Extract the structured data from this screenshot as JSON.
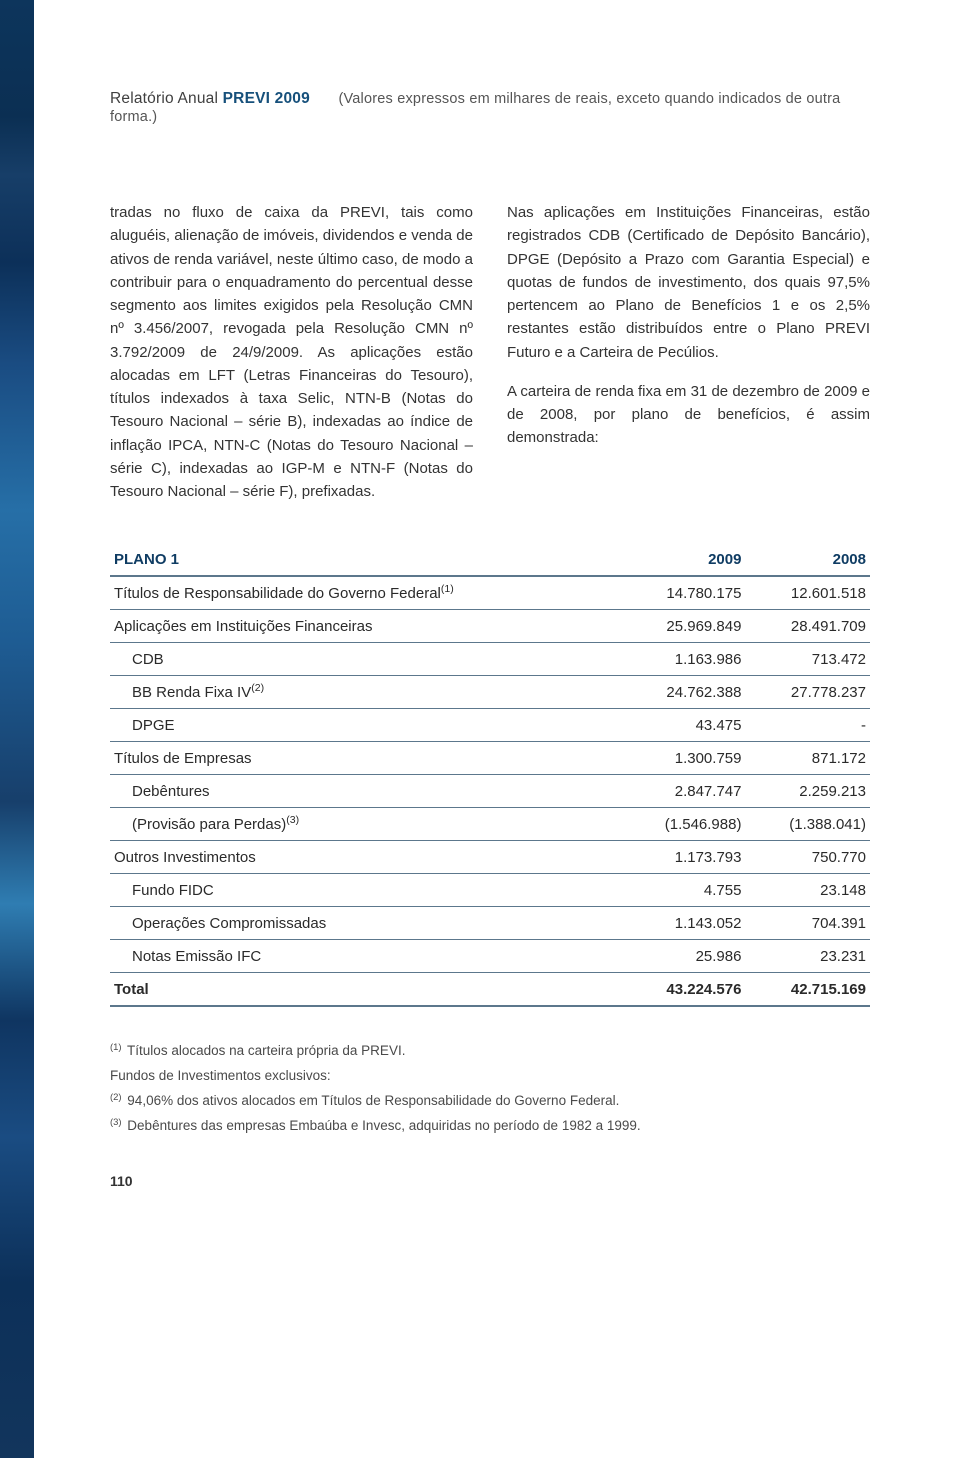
{
  "header": {
    "prefix": "Relatório Anual ",
    "brand": "PREVI 2009",
    "note": "(Valores expressos em milhares de reais, exceto quando indicados de outra forma.)"
  },
  "body": {
    "p1": "tradas no fluxo de caixa da PREVI, tais como aluguéis, alienação de imóveis, dividendos e venda de ativos de renda variável, neste último caso, de modo a contribuir para o enquadramento do percentual desse segmento aos limites exigidos pela Resolução CMN nº 3.456/2007, revogada pela Resolução CMN nº 3.792/2009 de 24/9/2009. As aplicações estão alocadas em LFT (Letras Financeiras do Tesouro), títulos indexados à taxa Selic, NTN-B (Notas do Tesouro Nacional – série B), indexadas ao índice de inflação IPCA, NTN-C (Notas do Tesouro Nacional – série C), indexadas ao IGP-M e NTN-F (Notas do Tesouro Nacional – série F), prefixadas.",
    "p2": "Nas aplicações em Instituições Financeiras, estão registrados CDB (Certificado de Depósito Bancário), DPGE (Depósito a Prazo com Garantia Especial) e quotas de fundos de investimento, dos quais 97,5% pertencem ao Plano de Benefícios 1 e os 2,5% restantes estão distribuídos entre o Plano PREVI Futuro e a Carteira de Pecúlios.",
    "p3": "A carteira de renda fixa em 31 de dezembro de 2009 e de 2008, por plano de benefícios, é assim demonstrada:"
  },
  "table": {
    "columns": [
      "PLANO 1",
      "2009",
      "2008"
    ],
    "rows": [
      {
        "label": "Títulos de Responsabilidade do Governo Federal",
        "sup": "(1)",
        "indent": 0,
        "bold": false,
        "v1": "14.780.175",
        "v2": "12.601.518"
      },
      {
        "label": "Aplicações em Instituições Financeiras",
        "sup": "",
        "indent": 0,
        "bold": false,
        "v1": "25.969.849",
        "v2": "28.491.709"
      },
      {
        "label": "CDB",
        "sup": "",
        "indent": 1,
        "bold": false,
        "v1": "1.163.986",
        "v2": "713.472"
      },
      {
        "label": "BB Renda Fixa IV",
        "sup": "(2)",
        "indent": 1,
        "bold": false,
        "v1": "24.762.388",
        "v2": "27.778.237"
      },
      {
        "label": "DPGE",
        "sup": "",
        "indent": 1,
        "bold": false,
        "v1": "43.475",
        "v2": "-"
      },
      {
        "label": "Títulos de Empresas",
        "sup": "",
        "indent": 0,
        "bold": false,
        "v1": "1.300.759",
        "v2": "871.172"
      },
      {
        "label": "Debêntures",
        "sup": "",
        "indent": 1,
        "bold": false,
        "v1": "2.847.747",
        "v2": "2.259.213"
      },
      {
        "label": "(Provisão para Perdas)",
        "sup": "(3)",
        "indent": 1,
        "bold": false,
        "v1": "(1.546.988)",
        "v2": "(1.388.041)"
      },
      {
        "label": "Outros Investimentos",
        "sup": "",
        "indent": 0,
        "bold": false,
        "v1": "1.173.793",
        "v2": "750.770"
      },
      {
        "label": "Fundo FIDC",
        "sup": "",
        "indent": 1,
        "bold": false,
        "v1": "4.755",
        "v2": "23.148"
      },
      {
        "label": "Operações Compromissadas",
        "sup": "",
        "indent": 1,
        "bold": false,
        "v1": "1.143.052",
        "v2": "704.391"
      },
      {
        "label": "Notas Emissão IFC",
        "sup": "",
        "indent": 1,
        "bold": false,
        "v1": "25.986",
        "v2": "23.231"
      },
      {
        "label": "Total",
        "sup": "",
        "indent": 0,
        "bold": true,
        "v1": "43.224.576",
        "v2": "42.715.169"
      }
    ]
  },
  "footnotes": {
    "n1_sup": "(1)",
    "n1": " Títulos alocados na carteira própria da PREVI.",
    "n_sub": "Fundos de Investimentos exclusivos:",
    "n2_sup": "(2)",
    "n2": " 94,06% dos ativos alocados em Títulos de Responsabilidade do Governo Federal.",
    "n3_sup": "(3)",
    "n3": " Debêntures das empresas Embaúba e Invesc, adquiridas no período de 1982 a 1999."
  },
  "pageNumber": "110"
}
